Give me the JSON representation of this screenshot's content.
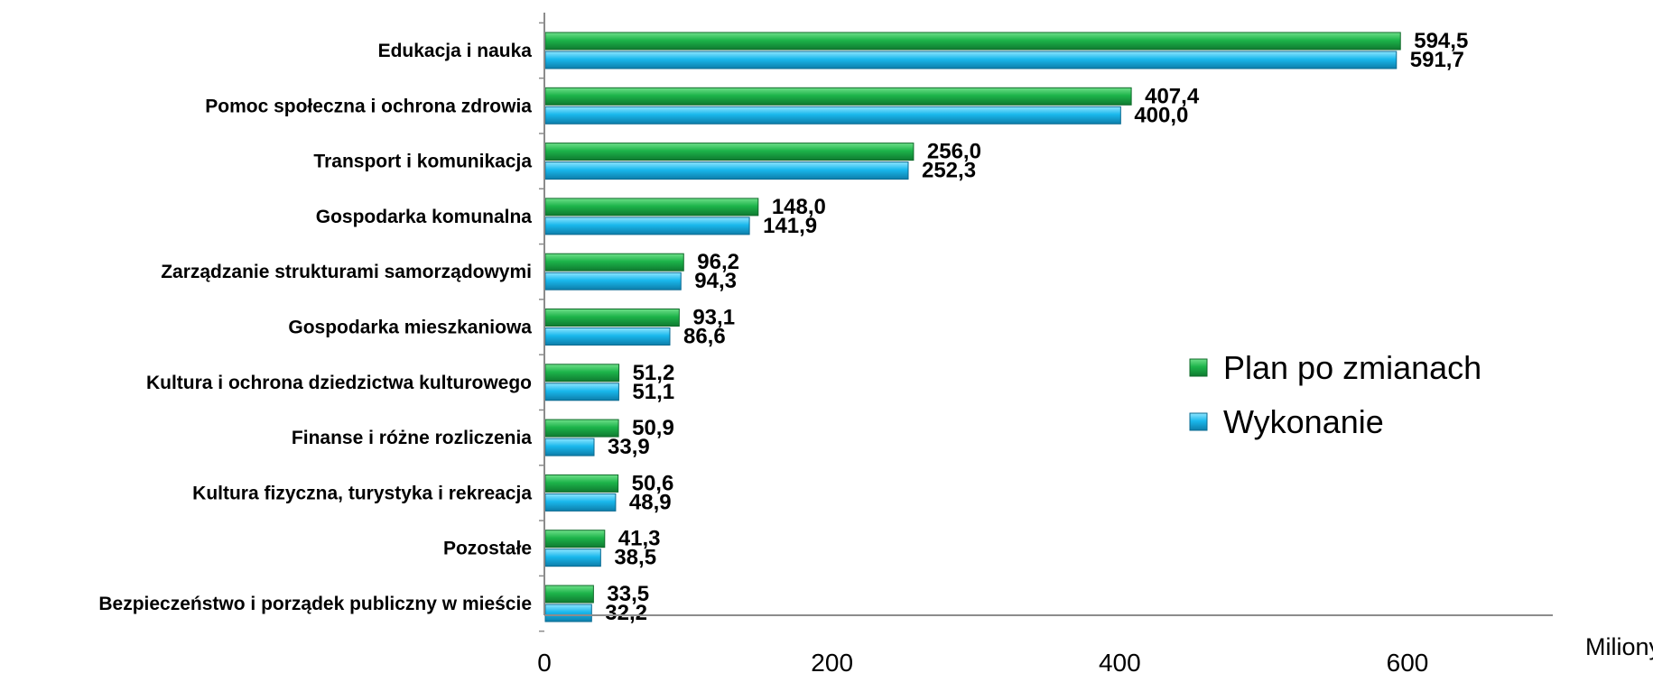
{
  "chart_data": {
    "type": "bar",
    "orientation": "horizontal",
    "categories": [
      "Edukacja i nauka",
      "Pomoc społeczna i ochrona zdrowia",
      "Transport i komunikacja",
      "Gospodarka komunalna",
      "Zarządzanie strukturami samorządowymi",
      "Gospodarka mieszkaniowa",
      "Kultura i ochrona dziedzictwa kulturowego",
      "Finanse i różne rozliczenia",
      "Kultura fizyczna, turystyka i rekreacja",
      "Pozostałe",
      "Bezpieczeństwo i porządek publiczny w mieście"
    ],
    "series": [
      {
        "name": "Plan po zmianach",
        "color": "#1db44a",
        "values": [
          594.5,
          407.4,
          256.0,
          148.0,
          96.2,
          93.1,
          51.2,
          50.9,
          50.6,
          41.3,
          33.5
        ],
        "labels": [
          "594,5",
          "407,4",
          "256,0",
          "148,0",
          "96,2",
          "93,1",
          "51,2",
          "50,9",
          "50,6",
          "41,3",
          "33,5"
        ]
      },
      {
        "name": "Wykonanie",
        "color": "#1ab8ec",
        "values": [
          591.7,
          400.0,
          252.3,
          141.9,
          94.3,
          86.6,
          51.1,
          33.9,
          48.9,
          38.5,
          32.2
        ],
        "labels": [
          "591,7",
          "400,0",
          "252,3",
          "141,9",
          "94,3",
          "86,6",
          "51,1",
          "33,9",
          "48,9",
          "38,5",
          "32,2"
        ]
      }
    ],
    "xlim": [
      0,
      700
    ],
    "x_ticks": [
      0,
      200,
      400,
      600
    ],
    "x_tick_labels": [
      "0",
      "200",
      "400",
      "600"
    ],
    "x_unit": "Miliony",
    "title": "",
    "xlabel": "",
    "ylabel": "",
    "grid": false,
    "legend_position": "right"
  }
}
